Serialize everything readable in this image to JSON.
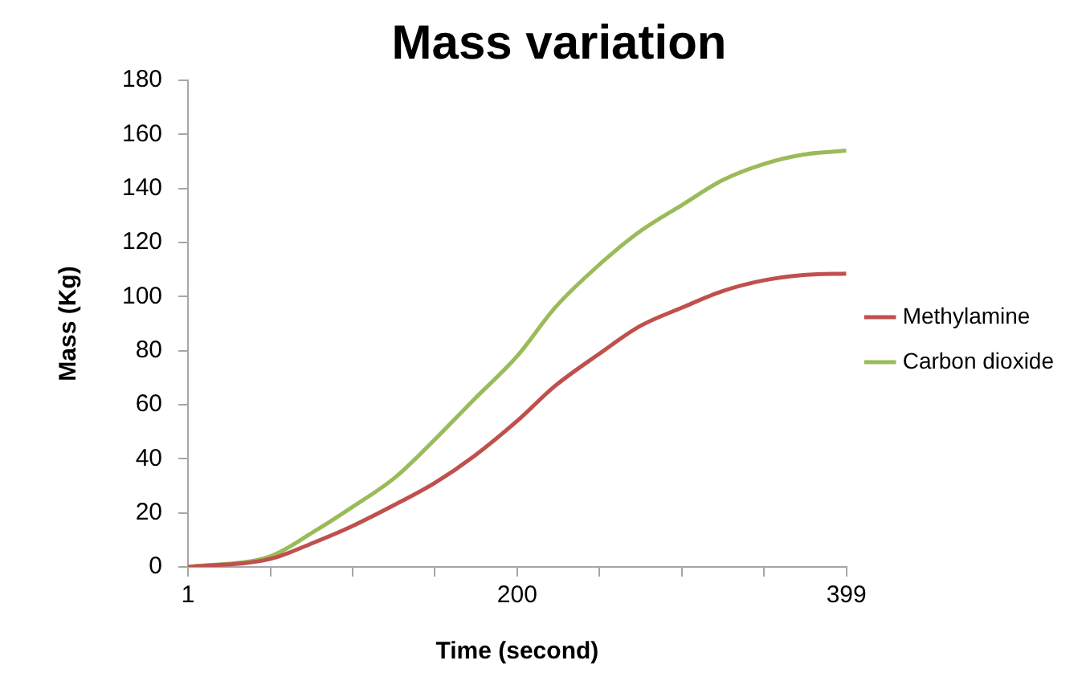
{
  "chart_data": {
    "type": "line",
    "title": "Mass variation",
    "xlabel": "Time (second)",
    "ylabel": "Mass (Kg)",
    "x": [
      1,
      51,
      77,
      100,
      126,
      150,
      174,
      200,
      223,
      250,
      274,
      300,
      324,
      349,
      373,
      399
    ],
    "series": [
      {
        "name": "Methylamine",
        "color": "#c0504d",
        "values": [
          0,
          3,
          9,
          15,
          23,
          31,
          41,
          54,
          67,
          79,
          89,
          96,
          102,
          106,
          108,
          108.5
        ]
      },
      {
        "name": "Carbon dioxide",
        "color": "#9bbb59",
        "values": [
          0,
          4,
          13,
          22,
          33,
          47,
          62,
          78,
          96,
          112,
          124,
          134,
          143,
          149,
          152.5,
          154
        ]
      }
    ],
    "xlim": [
      1,
      399
    ],
    "xticks": [
      1,
      {
        "value": 50.75,
        "label": null
      },
      {
        "value": 100.5,
        "label": null
      },
      {
        "value": 150.25,
        "label": null
      },
      200,
      {
        "value": 249.75,
        "label": null
      },
      {
        "value": 299.5,
        "label": null
      },
      {
        "value": 349.25,
        "label": null
      },
      399
    ],
    "ylim": [
      0,
      180
    ],
    "yticks": [
      0,
      20,
      40,
      60,
      80,
      100,
      120,
      140,
      160,
      180
    ],
    "grid": false,
    "legend": "right",
    "marker": "none",
    "line_style": "solid"
  }
}
